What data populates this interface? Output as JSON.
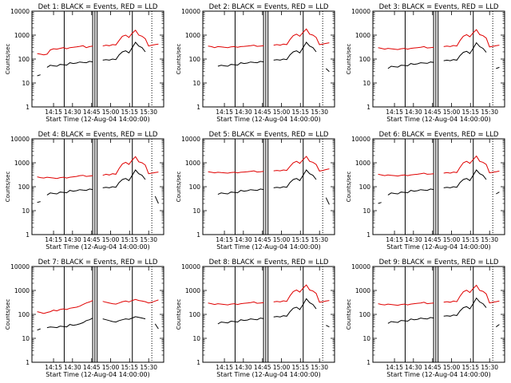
{
  "chart_data": {
    "type": "line",
    "layout": "3x3 grid",
    "yscale": "log",
    "ylim": [
      1,
      10000
    ],
    "ytick_labels": [
      "1",
      "10",
      "100",
      "1000",
      "10000"
    ],
    "xtick_labels": [
      "14:15",
      "14:30",
      "14:45",
      "15:00",
      "15:15",
      "15:30"
    ],
    "xlabel": "Start Time (12-Aug-04 14:00:00)",
    "ylabel": "Counts/sec",
    "series_colors": {
      "events": "#000000",
      "lld": "#e00000"
    },
    "panels": [
      {
        "title": "Det 1: BLACK = Events, RED = LLD",
        "events": [
          20,
          22,
          null,
          45,
          55,
          52,
          50,
          60,
          58,
          56,
          70,
          65,
          68,
          75,
          72,
          70,
          80,
          76,
          null,
          null,
          90,
          95,
          90,
          100,
          95,
          150,
          200,
          220,
          180,
          300,
          500,
          350,
          300,
          200,
          null,
          null,
          40,
          null
        ],
        "lld": [
          170,
          160,
          150,
          160,
          240,
          270,
          260,
          280,
          300,
          270,
          300,
          310,
          320,
          340,
          360,
          300,
          330,
          350,
          null,
          null,
          350,
          380,
          360,
          400,
          390,
          600,
          900,
          1000,
          800,
          1200,
          1600,
          1000,
          900,
          700,
          350,
          380,
          400,
          420
        ]
      },
      {
        "title": "Det 2: BLACK = Events, RED = LLD",
        "events": [
          null,
          null,
          null,
          50,
          55,
          52,
          50,
          60,
          58,
          56,
          70,
          65,
          68,
          75,
          72,
          70,
          80,
          76,
          null,
          null,
          90,
          95,
          90,
          100,
          95,
          150,
          200,
          220,
          180,
          300,
          500,
          350,
          300,
          200,
          null,
          null,
          40,
          30
        ],
        "lld": [
          350,
          330,
          300,
          330,
          320,
          310,
          300,
          320,
          330,
          310,
          330,
          340,
          350,
          360,
          380,
          340,
          350,
          360,
          null,
          null,
          380,
          400,
          380,
          420,
          400,
          650,
          950,
          1100,
          900,
          1300,
          1800,
          1100,
          1000,
          800,
          400,
          420,
          450,
          480
        ]
      },
      {
        "title": "Det 3: BLACK = Events, RED = LLD",
        "events": [
          null,
          null,
          null,
          40,
          50,
          48,
          46,
          55,
          54,
          52,
          65,
          60,
          63,
          70,
          68,
          66,
          75,
          72,
          null,
          null,
          85,
          90,
          85,
          95,
          90,
          140,
          190,
          210,
          170,
          280,
          480,
          330,
          280,
          190,
          null,
          null,
          40,
          45
        ],
        "lld": [
          300,
          280,
          260,
          280,
          270,
          260,
          250,
          270,
          280,
          260,
          280,
          290,
          300,
          310,
          330,
          290,
          300,
          310,
          null,
          null,
          330,
          350,
          330,
          370,
          350,
          600,
          900,
          1050,
          850,
          1250,
          1700,
          1050,
          950,
          750,
          320,
          340,
          360,
          380
        ]
      },
      {
        "title": "Det 4: BLACK = Events, RED = LLD",
        "events": [
          22,
          24,
          null,
          45,
          55,
          52,
          50,
          60,
          58,
          56,
          70,
          65,
          68,
          75,
          72,
          70,
          80,
          76,
          null,
          null,
          90,
          95,
          90,
          100,
          95,
          150,
          200,
          220,
          180,
          300,
          500,
          350,
          300,
          200,
          null,
          null,
          40,
          20
        ],
        "lld": [
          260,
          240,
          230,
          250,
          240,
          230,
          220,
          240,
          250,
          230,
          250,
          260,
          270,
          290,
          300,
          270,
          280,
          290,
          null,
          null,
          300,
          330,
          310,
          350,
          330,
          580,
          900,
          1050,
          850,
          1300,
          1800,
          1100,
          1000,
          800,
          350,
          370,
          390,
          410
        ]
      },
      {
        "title": "Det 5: BLACK = Events, RED = LLD",
        "events": [
          null,
          null,
          null,
          48,
          55,
          52,
          50,
          60,
          58,
          56,
          70,
          65,
          68,
          75,
          72,
          70,
          80,
          76,
          null,
          null,
          90,
          95,
          90,
          100,
          95,
          150,
          200,
          220,
          180,
          300,
          500,
          350,
          300,
          200,
          null,
          null,
          35,
          18
        ],
        "lld": [
          420,
          400,
          380,
          400,
          390,
          380,
          370,
          390,
          400,
          380,
          400,
          410,
          420,
          440,
          460,
          410,
          420,
          440,
          null,
          null,
          460,
          480,
          460,
          500,
          480,
          700,
          1000,
          1150,
          950,
          1350,
          1850,
          1150,
          1050,
          850,
          450,
          480,
          520,
          560
        ]
      },
      {
        "title": "Det 6: BLACK = Events, RED = LLD",
        "events": [
          20,
          22,
          null,
          45,
          55,
          52,
          50,
          60,
          58,
          56,
          70,
          65,
          68,
          75,
          72,
          70,
          80,
          76,
          null,
          null,
          90,
          95,
          90,
          100,
          95,
          150,
          200,
          220,
          180,
          300,
          500,
          350,
          300,
          200,
          null,
          null,
          50,
          60
        ],
        "lld": [
          330,
          310,
          290,
          310,
          300,
          290,
          280,
          300,
          310,
          290,
          310,
          320,
          330,
          350,
          370,
          330,
          340,
          350,
          null,
          null,
          370,
          390,
          370,
          410,
          390,
          650,
          1000,
          1150,
          950,
          1350,
          1900,
          1150,
          1050,
          850,
          380,
          400,
          420,
          450
        ]
      },
      {
        "title": "Det 7: BLACK = Events, RED = LLD",
        "events": [
          22,
          25,
          null,
          28,
          30,
          29,
          28,
          32,
          31,
          30,
          38,
          35,
          37,
          40,
          45,
          55,
          60,
          70,
          null,
          null,
          65,
          60,
          55,
          50,
          48,
          55,
          60,
          65,
          62,
          70,
          80,
          75,
          70,
          65,
          null,
          null,
          40,
          25
        ],
        "lld": [
          130,
          120,
          110,
          120,
          130,
          150,
          140,
          160,
          170,
          160,
          180,
          190,
          200,
          220,
          260,
          300,
          330,
          380,
          null,
          null,
          350,
          320,
          300,
          280,
          270,
          300,
          340,
          360,
          330,
          380,
          420,
          380,
          360,
          340,
          300,
          320,
          360,
          400
        ]
      },
      {
        "title": "Det 8: BLACK = Events, RED = LLD",
        "events": [
          null,
          null,
          null,
          40,
          48,
          46,
          44,
          52,
          50,
          48,
          60,
          56,
          58,
          65,
          62,
          60,
          70,
          66,
          null,
          null,
          78,
          82,
          78,
          88,
          84,
          130,
          180,
          200,
          160,
          260,
          450,
          310,
          260,
          170,
          null,
          null,
          35,
          30
        ],
        "lld": [
          300,
          280,
          260,
          280,
          270,
          260,
          250,
          270,
          280,
          260,
          280,
          290,
          300,
          310,
          330,
          290,
          300,
          310,
          null,
          null,
          330,
          350,
          330,
          370,
          350,
          600,
          900,
          1050,
          850,
          1250,
          1700,
          1050,
          950,
          750,
          320,
          340,
          360,
          380
        ]
      },
      {
        "title": "Det 9: BLACK = Events, RED = LLD",
        "events": [
          null,
          null,
          null,
          42,
          50,
          48,
          46,
          56,
          54,
          52,
          64,
          60,
          62,
          70,
          66,
          64,
          74,
          70,
          null,
          null,
          84,
          88,
          84,
          94,
          90,
          140,
          190,
          210,
          170,
          280,
          480,
          330,
          280,
          190,
          null,
          null,
          30,
          38
        ],
        "lld": [
          280,
          260,
          250,
          270,
          260,
          250,
          240,
          260,
          270,
          250,
          270,
          280,
          290,
          300,
          320,
          280,
          290,
          300,
          null,
          null,
          320,
          340,
          320,
          360,
          340,
          580,
          880,
          1020,
          820,
          1200,
          1650,
          1000,
          920,
          720,
          300,
          320,
          340,
          360
        ]
      }
    ]
  }
}
